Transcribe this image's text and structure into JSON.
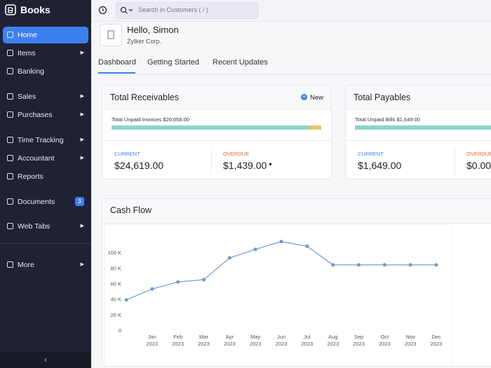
{
  "sidebar": {
    "brand": "Books",
    "items": [
      "Home",
      "Items",
      "Banking",
      "Sales",
      "Purchases",
      "Time Tracking",
      "Accountant",
      "Reports",
      "Documents",
      "Web Tabs",
      "More"
    ],
    "documents_count": 3
  },
  "header": {
    "search_placeholder": "Search in Customers ( / )"
  },
  "greeting": {
    "title": "Hello, Simon",
    "org": "Zylker Corp."
  },
  "tabs": [
    "Dashboard",
    "Getting Started",
    "Recent Updates"
  ],
  "receivables": {
    "title": "Total Receivables",
    "action": "New",
    "summary": "Total Unpaid Invoices $26,058.00",
    "current_label": "CURRENT",
    "current": "$24,619.00",
    "overdue_label": "OVERDUE",
    "overdue": "$1,439.00"
  },
  "payables": {
    "title": "Total Payables",
    "summary": "Total Unpaid Bills $1,649.00",
    "current_label": "CURRENT",
    "current": "$1,649.00",
    "overdue_label": "OVERDUE",
    "overdue": "$0.00"
  },
  "chart_data": {
    "type": "line",
    "title": "Cash Flow",
    "categories": [
      null,
      "Jan 2023",
      "Feb 2023",
      "Mar 2023",
      "Apr 2023",
      "May 2023",
      "Jun 2023",
      "Jul 2023",
      "Aug 2023",
      "Sep 2023",
      "Oct 2023",
      "Nov 2023",
      "Dec 2023"
    ],
    "series": [
      {
        "color": "#6b9bd1",
        "values": [
          39000,
          53000,
          62000,
          65000,
          93000,
          104000,
          114000,
          108000,
          84000,
          84000,
          84000,
          84000,
          84000
        ]
      }
    ],
    "ylim": [
      0,
      120000
    ],
    "yticks": [
      0,
      {
        "value": 20000,
        "label": "20 K"
      },
      {
        "value": 40000,
        "label": "40 K"
      },
      {
        "value": 60000,
        "label": "60 K"
      },
      {
        "value": 80000,
        "label": "80 K"
      },
      {
        "value": 100000,
        "label": "100 K"
      }
    ]
  }
}
